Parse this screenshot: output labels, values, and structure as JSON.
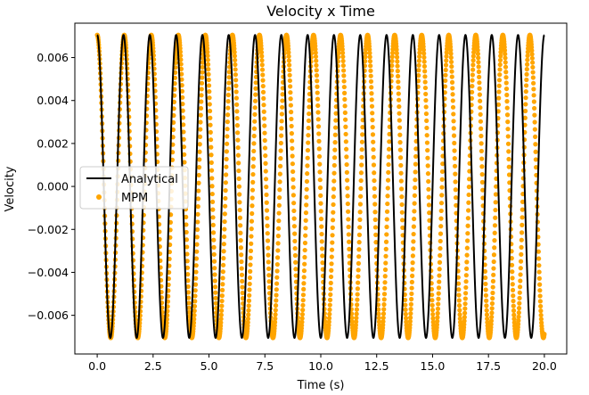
{
  "chart_data": {
    "type": "line",
    "title": "Velocity x Time",
    "xlabel": "Time (s)",
    "ylabel": "Velocity",
    "xlim": [
      -1.0,
      21.0
    ],
    "ylim": [
      -0.0078,
      0.0076
    ],
    "x_ticks": [
      0.0,
      2.5,
      5.0,
      7.5,
      10.0,
      12.5,
      15.0,
      17.5,
      20.0
    ],
    "x_tick_labels": [
      "0.0",
      "2.5",
      "5.0",
      "7.5",
      "10.0",
      "12.5",
      "15.0",
      "17.5",
      "20.0"
    ],
    "y_ticks": [
      -0.006,
      -0.004,
      -0.002,
      0.0,
      0.002,
      0.004,
      0.006
    ],
    "y_tick_labels": [
      "−0.006",
      "−0.004",
      "−0.002",
      "0.000",
      "0.002",
      "0.004",
      "0.006"
    ],
    "grid": false,
    "legend_position": "center-left",
    "series": [
      {
        "name": "Analytical",
        "kind": "line",
        "color": "#000000",
        "amplitude": 0.00705,
        "period": 1.1765,
        "x_start": 0.0,
        "x_end": 20.0
      },
      {
        "name": "MPM",
        "kind": "scatter",
        "color": "#ffa500",
        "amplitude": 0.00705,
        "period": 1.2095,
        "x_start": 0.0,
        "x_end": 20.0
      }
    ]
  }
}
